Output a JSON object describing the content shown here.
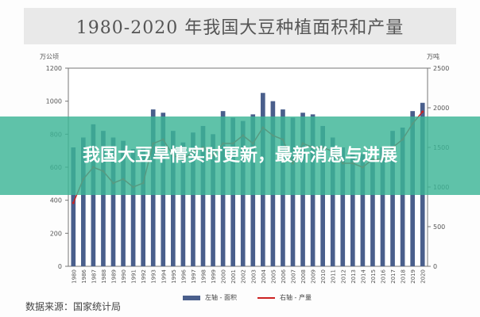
{
  "chart_data": {
    "type": "bar",
    "title": "1980-2020 年我国大豆种植面积和产量",
    "y_left_unit": "万公顷",
    "y_right_unit": "万吨",
    "ylim_left": [
      0,
      1200
    ],
    "ylim_right": [
      0,
      2500
    ],
    "yticks_left": [
      "0",
      "200",
      "400",
      "600",
      "800",
      "1000",
      "1200"
    ],
    "yticks_right": [
      "0",
      "500",
      "1000",
      "1500",
      "2000",
      "2500"
    ],
    "categories": [
      "1980",
      "1986",
      "1987",
      "1988",
      "1989",
      "1990",
      "1991",
      "1992",
      "1993",
      "1994",
      "1995",
      "1996",
      "1997",
      "1998",
      "1999",
      "2000",
      "2001",
      "2002",
      "2003",
      "2004",
      "2005",
      "2006",
      "2007",
      "2008",
      "2009",
      "2010",
      "2011",
      "2012",
      "2013",
      "2014",
      "2015",
      "2016",
      "2017",
      "2018",
      "2019",
      "2020"
    ],
    "series": [
      {
        "name": "左轴 - 面积",
        "type": "bar",
        "axis": "left",
        "values": [
          720,
          780,
          860,
          820,
          780,
          760,
          710,
          720,
          950,
          930,
          820,
          750,
          810,
          850,
          800,
          940,
          900,
          880,
          920,
          1050,
          1000,
          950,
          900,
          930,
          920,
          850,
          780,
          720,
          680,
          680,
          650,
          720,
          820,
          840,
          940,
          990
        ]
      },
      {
        "name": "右轴 - 产量",
        "type": "line",
        "axis": "right",
        "values": [
          800,
          1100,
          1250,
          1200,
          1050,
          1100,
          1000,
          1050,
          1550,
          1600,
          1400,
          1350,
          1450,
          1500,
          1400,
          1550,
          1550,
          1650,
          1550,
          1750,
          1650,
          1600,
          1300,
          1550,
          1500,
          1500,
          1450,
          1300,
          1300,
          1250,
          1350,
          1350,
          1500,
          1600,
          1800,
          1950
        ]
      }
    ],
    "legend_position": "bottom",
    "grid": false
  },
  "source_text": "数据来源：国家统计局",
  "overlay_text": "我国大豆旱情实时更新，最新消息与进展",
  "colors": {
    "bar": "#4a5f8c",
    "line": "#cc2222",
    "overlay": "#3cb496"
  }
}
